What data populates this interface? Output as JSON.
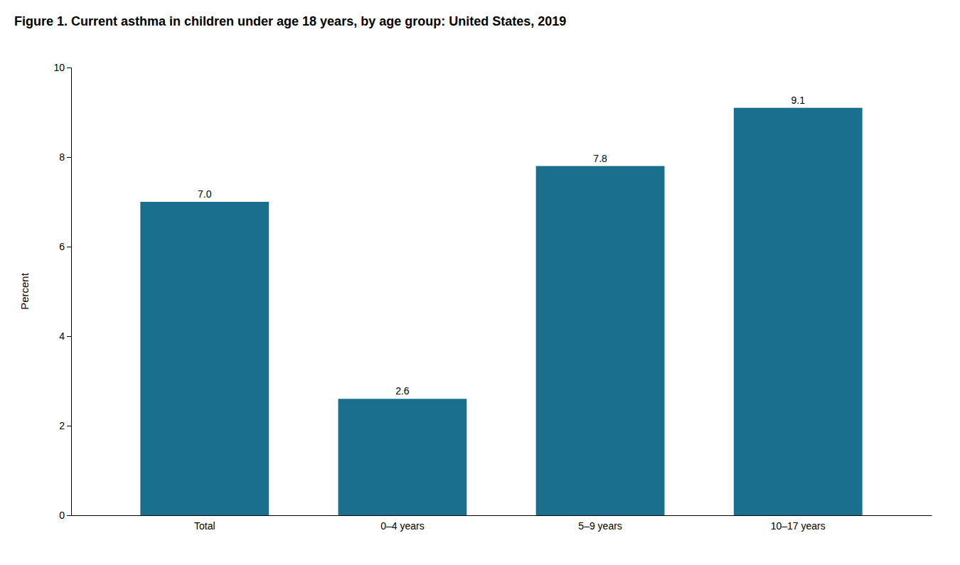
{
  "chart_data": {
    "type": "bar",
    "title": "Figure 1. Current asthma in children under age 18 years, by age group: United States, 2019",
    "categories": [
      "Total",
      "0–4 years",
      "5–9 years",
      "10–17 years"
    ],
    "values": [
      7.0,
      2.6,
      7.8,
      9.1
    ],
    "value_labels": [
      "7.0",
      "2.6",
      "7.8",
      "9.1"
    ],
    "color": "#1a6f8e",
    "ylabel": "Percent",
    "ylim": [
      0,
      10
    ],
    "yticks": [
      0,
      2,
      4,
      6,
      8,
      10
    ],
    "grid": false,
    "data_labels": true
  }
}
